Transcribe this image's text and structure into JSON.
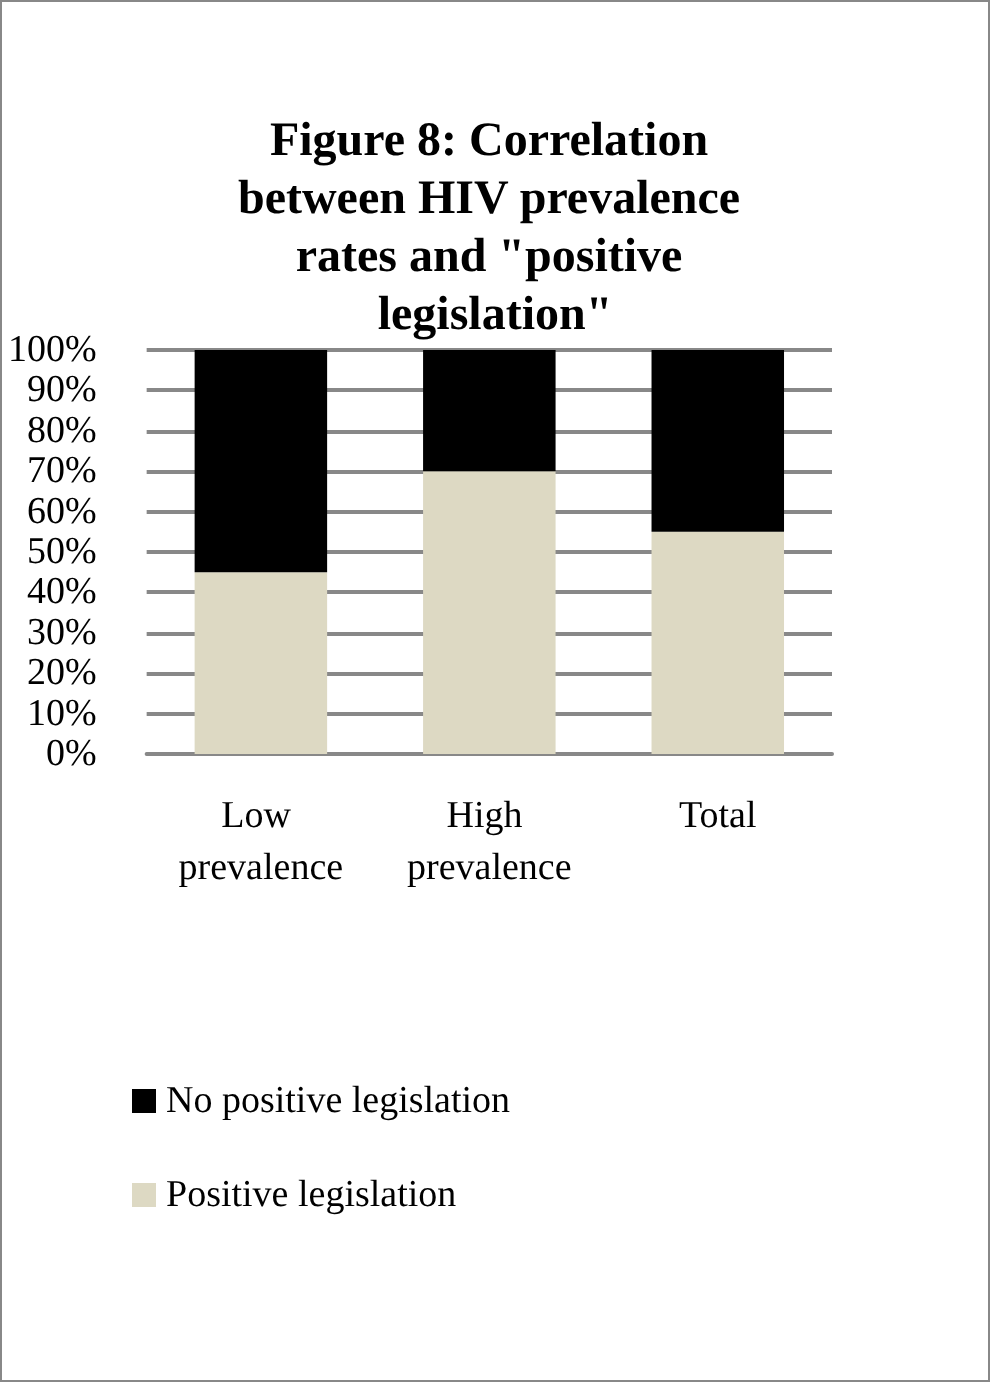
{
  "chart_data": {
    "type": "bar",
    "title": "Figure 8: Correlation between HIV prevalence rates and \"positive legislation\"",
    "categories": [
      "Low prevalence",
      "High prevalence",
      "Total"
    ],
    "series": [
      {
        "name": "Positive legislation",
        "color": "#ddd9c3",
        "values": [
          45,
          70,
          55
        ]
      },
      {
        "name": "No positive legislation",
        "color": "#000000",
        "values": [
          55,
          30,
          45
        ]
      }
    ],
    "stacked": true,
    "ylim": [
      0,
      100
    ],
    "yticks": [
      {
        "value": 0,
        "label": "0%"
      },
      {
        "value": 10,
        "label": "10%"
      },
      {
        "value": 20,
        "label": "20%"
      },
      {
        "value": 30,
        "label": "30%"
      },
      {
        "value": 40,
        "label": "40%"
      },
      {
        "value": 50,
        "label": "50%"
      },
      {
        "value": 60,
        "label": "60%"
      },
      {
        "value": 70,
        "label": "70%"
      },
      {
        "value": 80,
        "label": "80%"
      },
      {
        "value": 90,
        "label": "90%"
      },
      {
        "value": 100,
        "label": "100%"
      }
    ],
    "grid": "y",
    "legend": "bottom"
  }
}
